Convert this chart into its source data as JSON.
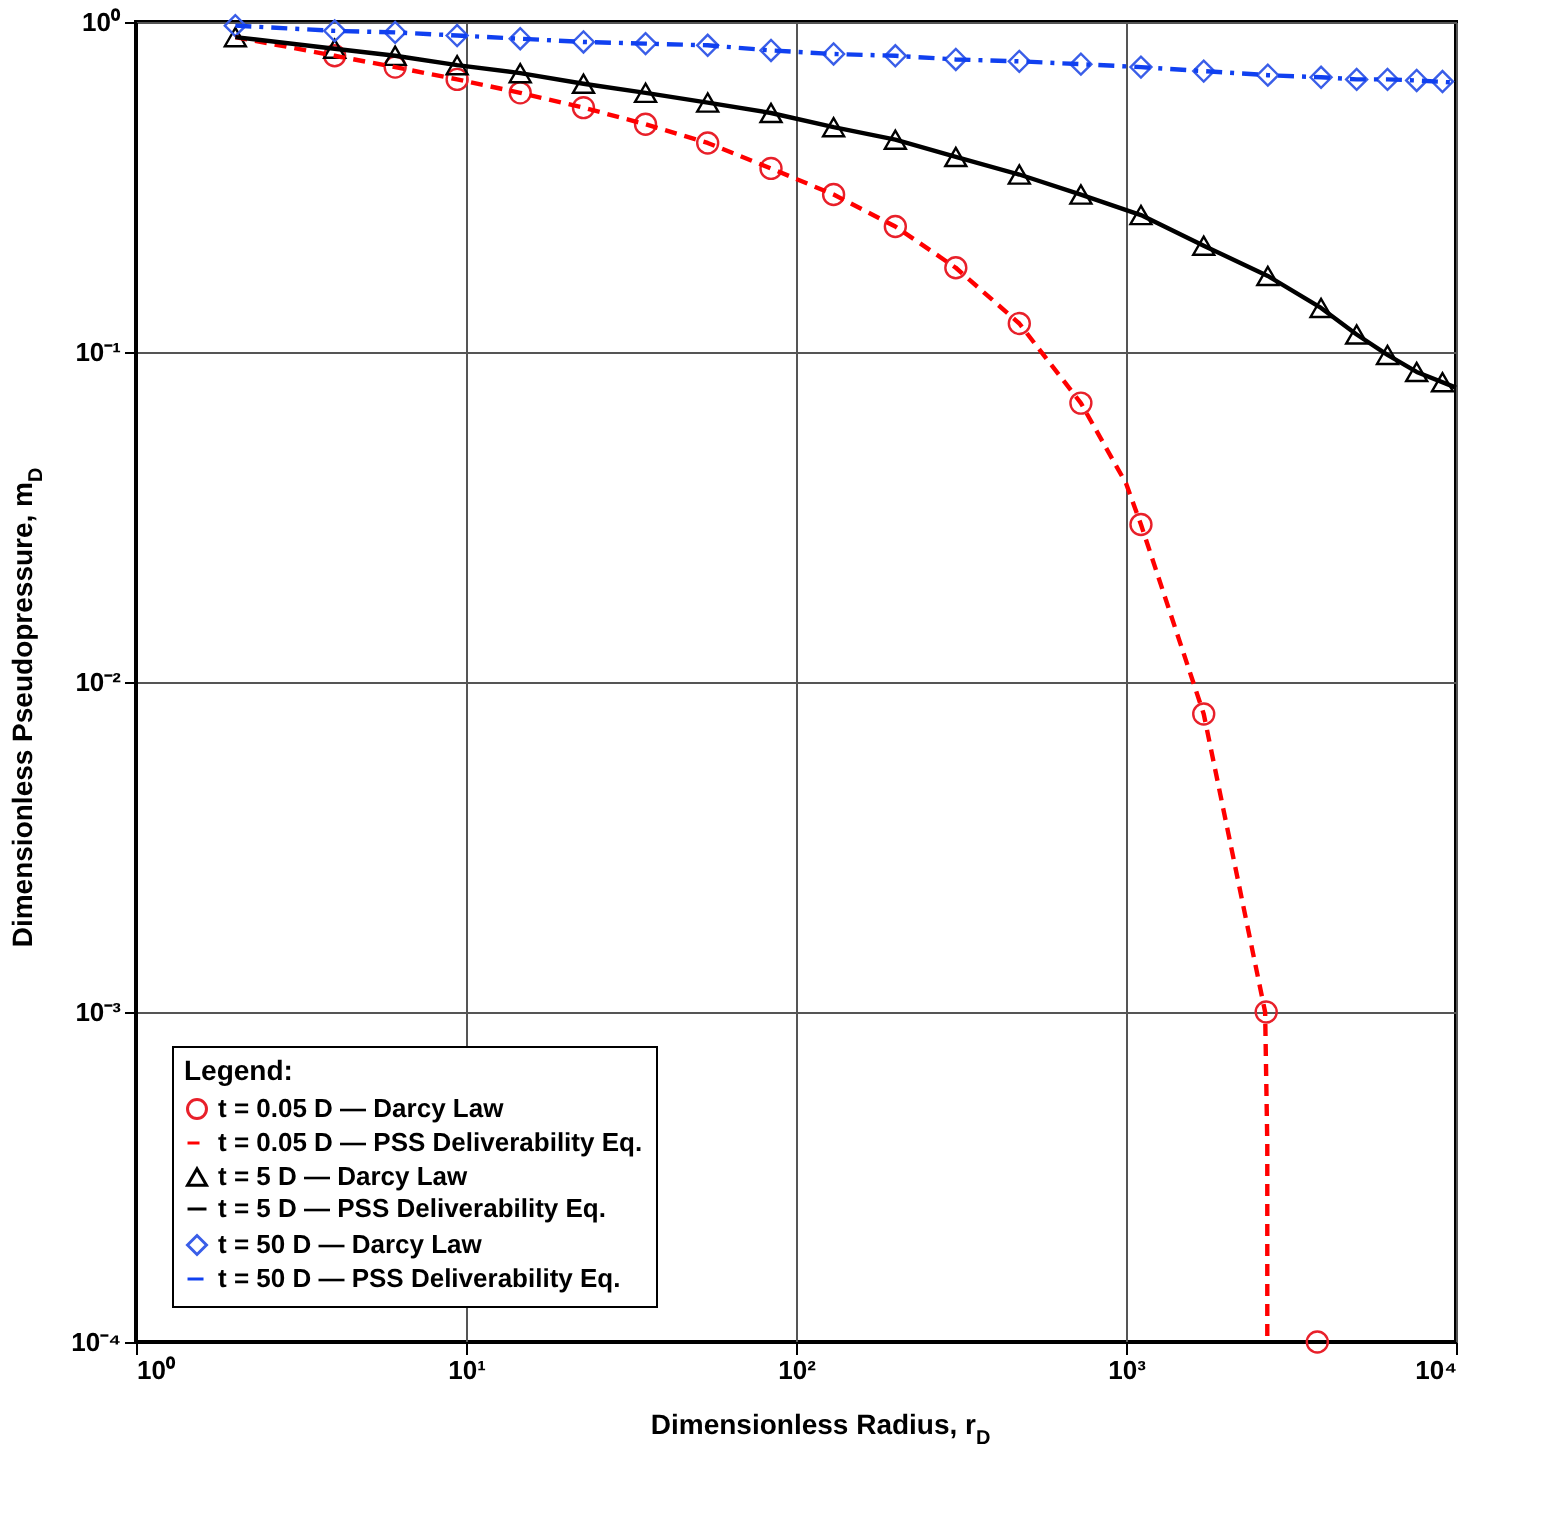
{
  "chart_data": {
    "type": "line",
    "xlabel": "Dimensionless Radius, r$_{D}$",
    "ylabel": "Dimensionless Pseudopressure, m$_{D}$",
    "legend_title": "Legend:",
    "log": "xy",
    "grid": true,
    "legend": "bottom left",
    "xlim": [
      1,
      10000
    ],
    "ylim": [
      0.0001,
      1
    ],
    "xticks": [
      {
        "value": 1,
        "label": "10⁰"
      },
      {
        "value": 10,
        "label": "10¹"
      },
      {
        "value": 100,
        "label": "10²"
      },
      {
        "value": 1000,
        "label": "10³"
      },
      {
        "value": 10000,
        "label": "10⁴"
      }
    ],
    "yticks": [
      {
        "value": 0.0001,
        "label": "10⁻⁴"
      },
      {
        "value": 0.001,
        "label": "10⁻³"
      },
      {
        "value": 0.01,
        "label": "10⁻²"
      },
      {
        "value": 0.1,
        "label": "10⁻¹"
      },
      {
        "value": 1,
        "label": "10⁰"
      }
    ],
    "series": [
      {
        "name": "t = 0.05 D — Darcy Law",
        "type": "scatter",
        "marker": "circle",
        "color": "#e8202a",
        "x": [
          4,
          6.1,
          9.4,
          14.6,
          22.7,
          35,
          54,
          84,
          130,
          200,
          305,
          475,
          730,
          1110,
          1720,
          2660,
          3800
        ],
        "values": [
          0.79,
          0.73,
          0.67,
          0.61,
          0.55,
          0.49,
          0.43,
          0.36,
          0.3,
          0.24,
          0.18,
          0.122,
          0.07,
          0.03,
          0.008,
          0.001,
          0.0001
        ]
      },
      {
        "name": "t = 0.05 D — PSS Deliverability Eq.",
        "line_style": "dashed",
        "color": "#ff0000",
        "x": [
          2,
          4,
          6.1,
          9.4,
          14.6,
          22.7,
          35,
          54,
          84,
          130,
          200,
          305,
          475,
          730,
          1000,
          1110,
          1720,
          2640,
          2680,
          2680
        ],
        "values": [
          0.9,
          0.79,
          0.73,
          0.67,
          0.61,
          0.55,
          0.49,
          0.43,
          0.36,
          0.3,
          0.24,
          0.18,
          0.122,
          0.07,
          0.04,
          0.03,
          0.008,
          0.001,
          0.0004,
          0.0001
        ]
      },
      {
        "name": "t = 5 D — Darcy Law",
        "type": "scatter",
        "marker": "triangle",
        "color": "#000000",
        "x": [
          2,
          4,
          6.1,
          9.4,
          14.6,
          22.7,
          35,
          54,
          84,
          130,
          200,
          305,
          475,
          730,
          1110,
          1720,
          2690,
          3900,
          5000,
          6200,
          7600,
          9100
        ],
        "values": [
          0.9,
          0.83,
          0.79,
          0.74,
          0.7,
          0.65,
          0.61,
          0.57,
          0.53,
          0.48,
          0.44,
          0.39,
          0.345,
          0.3,
          0.26,
          0.21,
          0.17,
          0.136,
          0.113,
          0.098,
          0.087,
          0.081
        ]
      },
      {
        "name": "t = 5 D — PSS Deliverability Eq.",
        "line_style": "solid",
        "color": "#000000",
        "x": [
          2,
          4,
          6.1,
          9.4,
          14.6,
          22.7,
          35,
          54,
          84,
          130,
          200,
          305,
          475,
          730,
          1110,
          1720,
          2690,
          3900,
          5000,
          6200,
          7600,
          10000
        ],
        "values": [
          0.9,
          0.83,
          0.79,
          0.74,
          0.7,
          0.65,
          0.61,
          0.57,
          0.53,
          0.48,
          0.44,
          0.39,
          0.345,
          0.3,
          0.26,
          0.21,
          0.17,
          0.136,
          0.113,
          0.098,
          0.087,
          0.078
        ]
      },
      {
        "name": "t = 50 D — Darcy Law",
        "type": "scatter",
        "marker": "diamond",
        "color": "#3a5ee8",
        "x": [
          2,
          4,
          6.1,
          9.4,
          14.6,
          22.7,
          35,
          54,
          84,
          130,
          200,
          305,
          475,
          730,
          1110,
          1720,
          2690,
          3900,
          5000,
          6200,
          7600,
          9100
        ],
        "values": [
          0.975,
          0.94,
          0.93,
          0.91,
          0.89,
          0.87,
          0.86,
          0.85,
          0.82,
          0.8,
          0.79,
          0.77,
          0.76,
          0.745,
          0.73,
          0.71,
          0.69,
          0.68,
          0.67,
          0.67,
          0.665,
          0.66
        ]
      },
      {
        "name": "t = 50 D — PSS Deliverability Eq.",
        "line_style": "dashdot",
        "color": "#1040f0",
        "x": [
          2,
          4,
          6.1,
          9.4,
          14.6,
          22.7,
          35,
          54,
          84,
          130,
          200,
          305,
          475,
          730,
          1110,
          1720,
          2690,
          3900,
          5000,
          6200,
          7600,
          10000
        ],
        "values": [
          0.975,
          0.94,
          0.93,
          0.91,
          0.89,
          0.87,
          0.86,
          0.85,
          0.82,
          0.8,
          0.79,
          0.77,
          0.76,
          0.745,
          0.73,
          0.71,
          0.69,
          0.68,
          0.67,
          0.67,
          0.665,
          0.655
        ]
      }
    ]
  }
}
